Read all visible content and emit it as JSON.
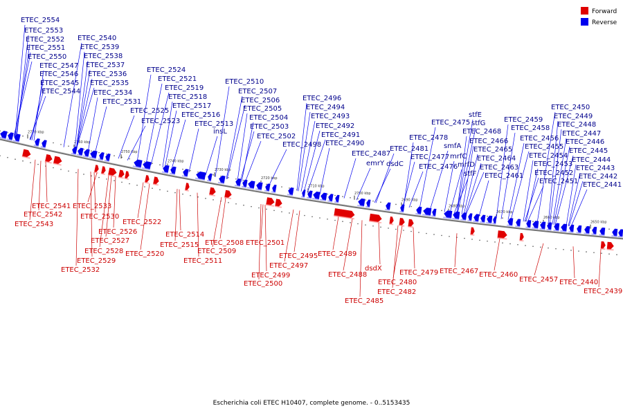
{
  "caption": "Escherichia coli ETEC H10407, complete genome. - 0..5153435",
  "legend": [
    {
      "label": "Forward",
      "color": "#e00000"
    },
    {
      "label": "Reverse",
      "color": "#0000ee"
    }
  ],
  "colors": {
    "forward": "#e00000",
    "reverse": "#0000ee",
    "forward_label": "#cc0000",
    "reverse_label": "#00008b",
    "backbone": "#707070"
  },
  "ticks": [
    "2770 kbp",
    "2760 kbp",
    "2750 kbp",
    "2740 kbp",
    "2730 kbp",
    "2720 kbp",
    "2710 kbp",
    "2700 kbp",
    "2690 kbp",
    "2680 kbp",
    "2670 kbp",
    "2660 kbp",
    "2650 kbp"
  ],
  "reverse_genes": [
    {
      "label": "ETEC_2554"
    },
    {
      "label": "ETEC_2553"
    },
    {
      "label": "ETEC_2552"
    },
    {
      "label": "ETEC_2551"
    },
    {
      "label": "ETEC_2550"
    },
    {
      "label": "ETEC_2547"
    },
    {
      "label": "ETEC_2546"
    },
    {
      "label": "ETEC_2545"
    },
    {
      "label": "ETEC_2544"
    },
    {
      "label": "ETEC_2540"
    },
    {
      "label": "ETEC_2539"
    },
    {
      "label": "ETEC_2538"
    },
    {
      "label": "ETEC_2537"
    },
    {
      "label": "ETEC_2536"
    },
    {
      "label": "ETEC_2535"
    },
    {
      "label": "ETEC_2534"
    },
    {
      "label": "ETEC_2531"
    },
    {
      "label": "ETEC_2524"
    },
    {
      "label": "ETEC_2521"
    },
    {
      "label": "ETEC_2519"
    },
    {
      "label": "ETEC_2518"
    },
    {
      "label": "ETEC_2517"
    },
    {
      "label": "ETEC_2516"
    },
    {
      "label": "ETEC_2525"
    },
    {
      "label": "ETEC_2523"
    },
    {
      "label": "ETEC_2513"
    },
    {
      "label": "insL"
    },
    {
      "label": "ETEC_2510"
    },
    {
      "label": "ETEC_2507"
    },
    {
      "label": "ETEC_2506"
    },
    {
      "label": "ETEC_2505"
    },
    {
      "label": "ETEC_2504"
    },
    {
      "label": "ETEC_2503"
    },
    {
      "label": "ETEC_2502"
    },
    {
      "label": "ETEC_2498"
    },
    {
      "label": "ETEC_2496"
    },
    {
      "label": "ETEC_2494"
    },
    {
      "label": "ETEC_2493"
    },
    {
      "label": "ETEC_2492"
    },
    {
      "label": "ETEC_2491"
    },
    {
      "label": "ETEC_2490"
    },
    {
      "label": "ETEC_2487"
    },
    {
      "label": "emrY"
    },
    {
      "label": "dsdC"
    },
    {
      "label": "ETEC_2481"
    },
    {
      "label": "ETEC_2478"
    },
    {
      "label": "ETEC_2477"
    },
    {
      "label": "ETEC_2476"
    },
    {
      "label": "ETEC_2475"
    },
    {
      "label": "smfA"
    },
    {
      "label": "mrfC"
    },
    {
      "label": "mrfD"
    },
    {
      "label": "stfF"
    },
    {
      "label": "stfE"
    },
    {
      "label": "stfG"
    },
    {
      "label": "ETEC_2468"
    },
    {
      "label": "ETEC_2466"
    },
    {
      "label": "ETEC_2465"
    },
    {
      "label": "ETEC_2464"
    },
    {
      "label": "ETEC_2463"
    },
    {
      "label": "ETEC_2461"
    },
    {
      "label": "ETEC_2459"
    },
    {
      "label": "ETEC_2458"
    },
    {
      "label": "ETEC_2456"
    },
    {
      "label": "ETEC_2455"
    },
    {
      "label": "ETEC_2454"
    },
    {
      "label": "ETEC_2453"
    },
    {
      "label": "ETEC_2452"
    },
    {
      "label": "ETEC_2451"
    },
    {
      "label": "ETEC_2450"
    },
    {
      "label": "ETEC_2449"
    },
    {
      "label": "ETEC_2448"
    },
    {
      "label": "ETEC_2447"
    },
    {
      "label": "ETEC_2446"
    },
    {
      "label": "ETEC_2445"
    },
    {
      "label": "ETEC_2444"
    },
    {
      "label": "ETEC_2443"
    },
    {
      "label": "ETEC_2442"
    },
    {
      "label": "ETEC_2441"
    }
  ],
  "forward_genes": [
    {
      "label": "ETEC_2541"
    },
    {
      "label": "ETEC_2542"
    },
    {
      "label": "ETEC_2543"
    },
    {
      "label": "ETEC_2533"
    },
    {
      "label": "ETEC_2530"
    },
    {
      "label": "ETEC_2526"
    },
    {
      "label": "ETEC_2527"
    },
    {
      "label": "ETEC_2528"
    },
    {
      "label": "ETEC_2529"
    },
    {
      "label": "ETEC_2532"
    },
    {
      "label": "ETEC_2522"
    },
    {
      "label": "ETEC_2520"
    },
    {
      "label": "ETEC_2514"
    },
    {
      "label": "ETEC_2515"
    },
    {
      "label": "ETEC_2508"
    },
    {
      "label": "ETEC_2509"
    },
    {
      "label": "ETEC_2511"
    },
    {
      "label": "ETEC_2501"
    },
    {
      "label": "ETEC_2495"
    },
    {
      "label": "ETEC_2497"
    },
    {
      "label": "ETEC_2499"
    },
    {
      "label": "ETEC_2500"
    },
    {
      "label": "ETEC_2489"
    },
    {
      "label": "ETEC_2488"
    },
    {
      "label": "dsdX"
    },
    {
      "label": "ETEC_2485"
    },
    {
      "label": "ETEC_2482"
    },
    {
      "label": "ETEC_2480"
    },
    {
      "label": "ETEC_2479"
    },
    {
      "label": "ETEC_2467"
    },
    {
      "label": "ETEC_2460"
    },
    {
      "label": "ETEC_2457"
    },
    {
      "label": "ETEC_2440"
    },
    {
      "label": "ETEC_2439"
    }
  ]
}
